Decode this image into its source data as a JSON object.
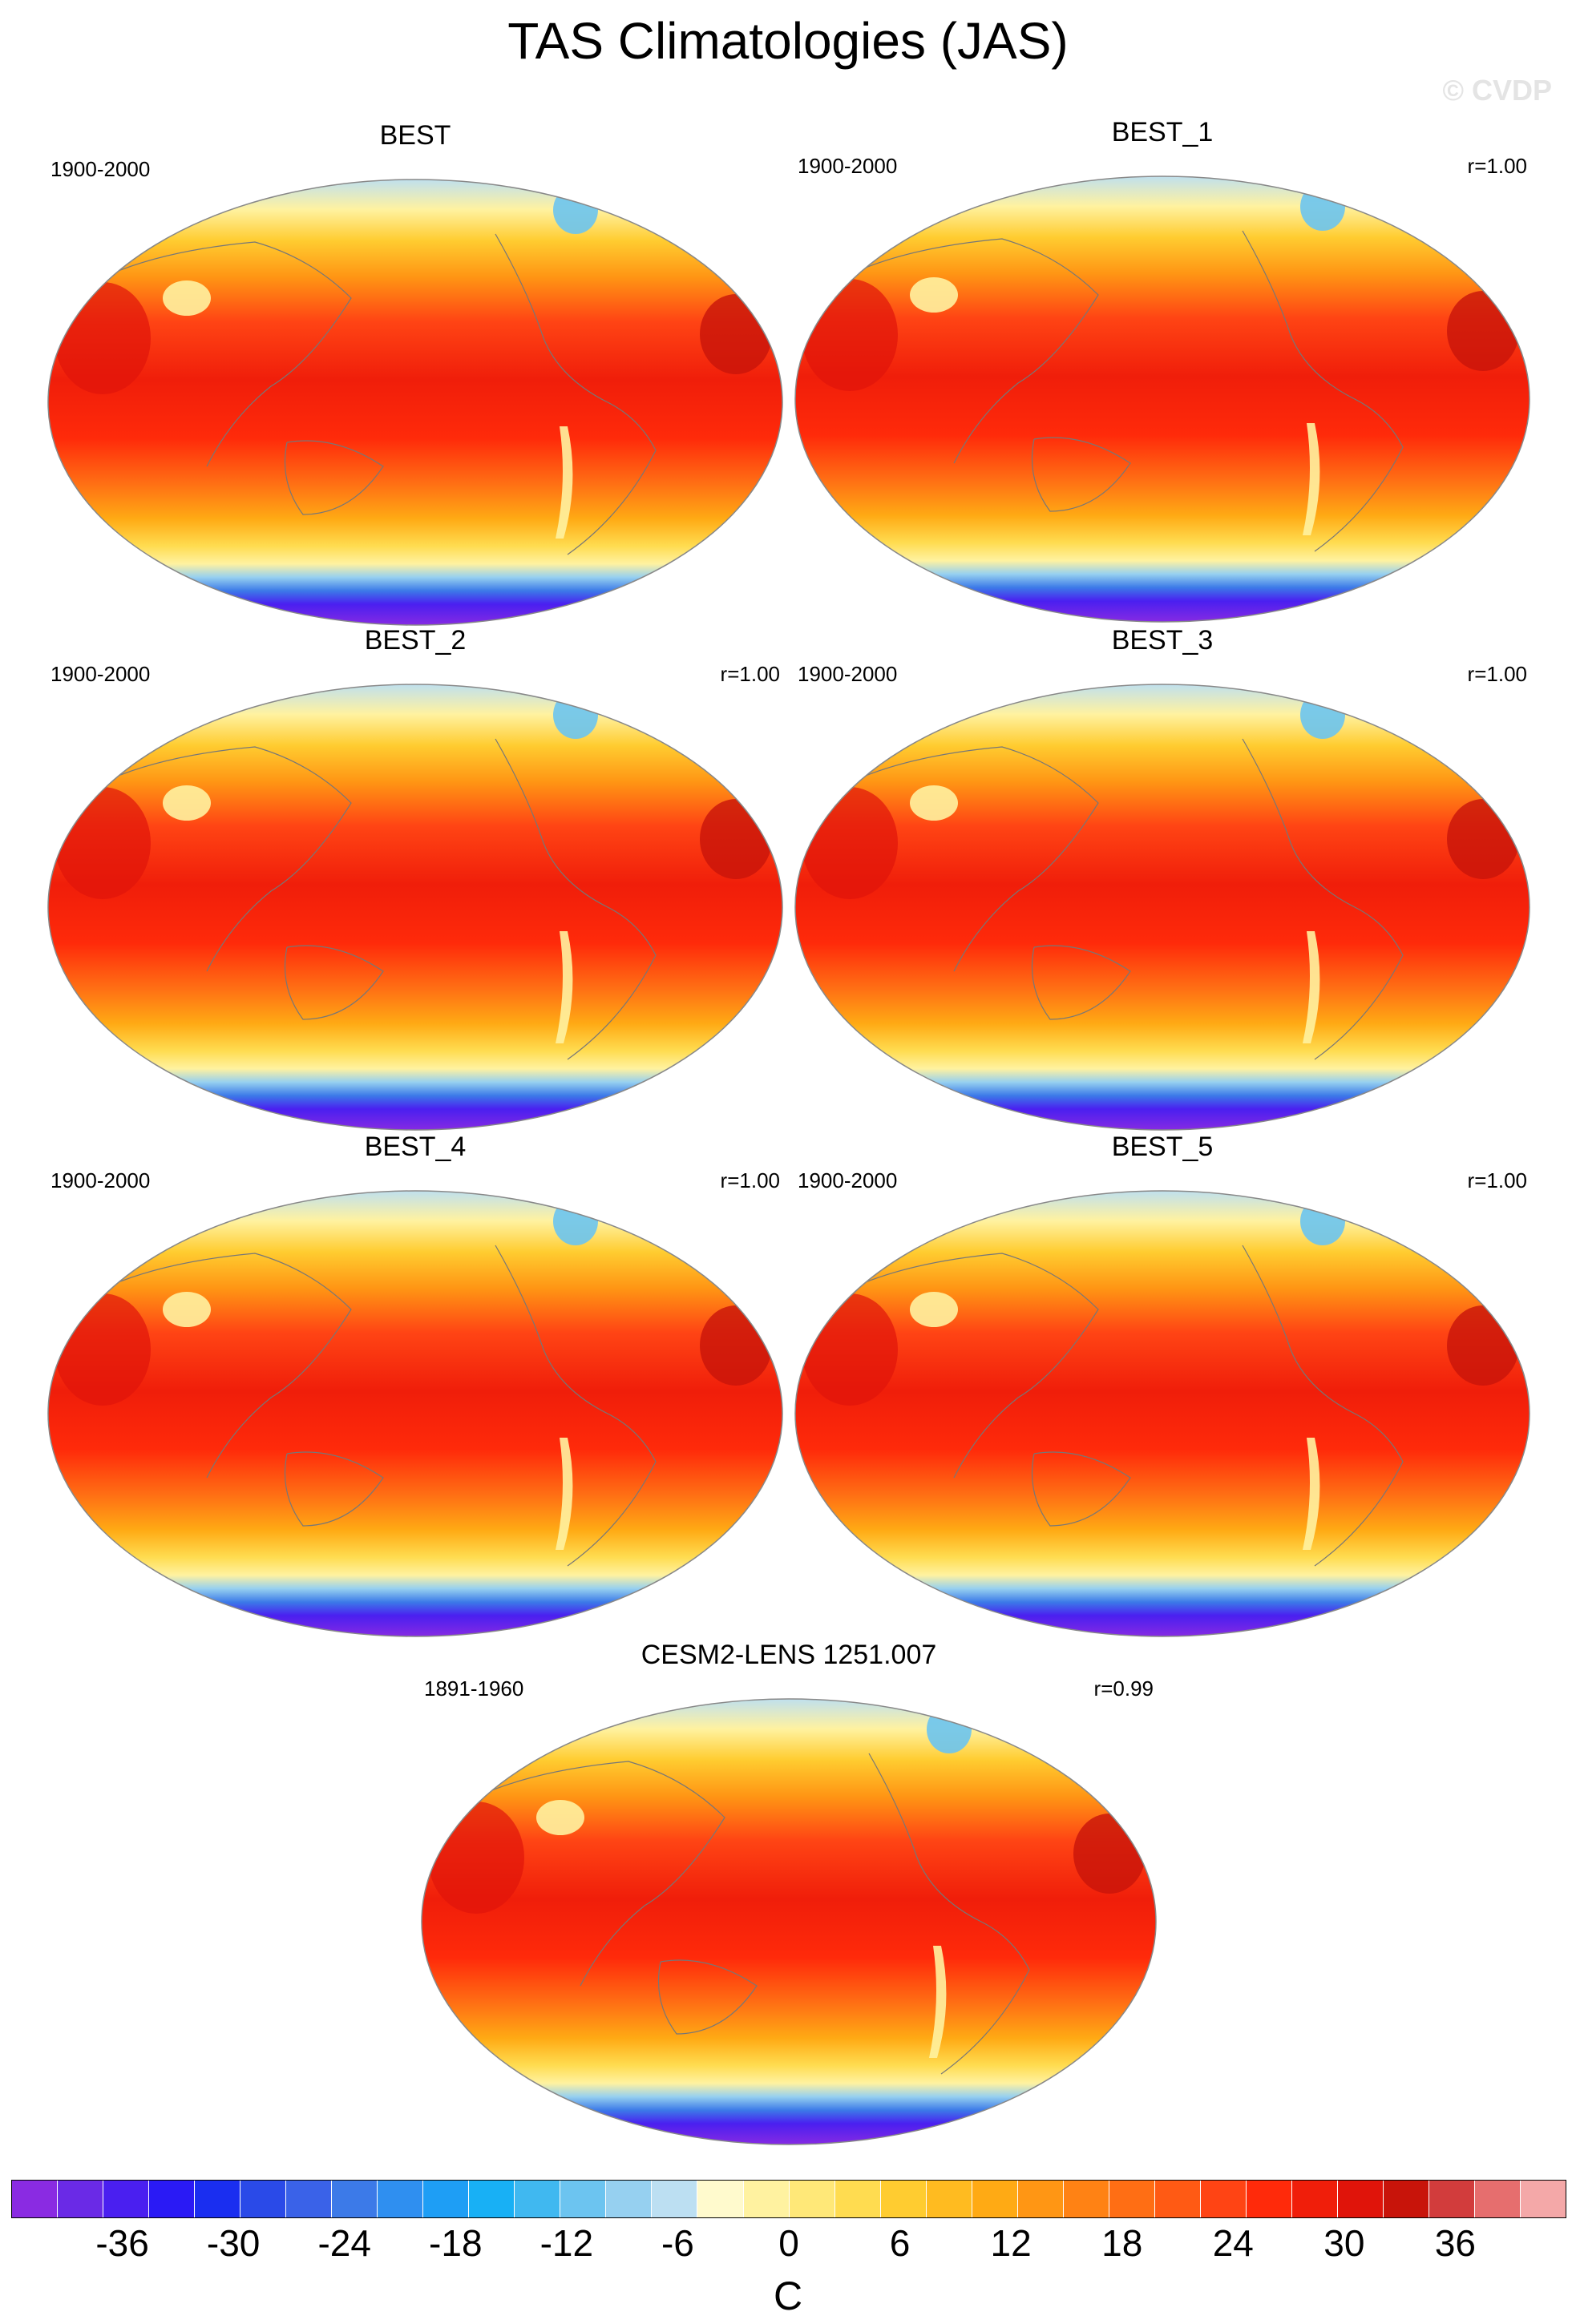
{
  "title": "TAS Climatologies (JAS)",
  "watermark": "© CVDP",
  "panels": [
    {
      "name": "BEST",
      "period": "1900-2000",
      "corr": ""
    },
    {
      "name": "BEST_1",
      "period": "1900-2000",
      "corr": "r=1.00"
    },
    {
      "name": "BEST_2",
      "period": "1900-2000",
      "corr": "r=1.00"
    },
    {
      "name": "BEST_3",
      "period": "1900-2000",
      "corr": "r=1.00"
    },
    {
      "name": "BEST_4",
      "period": "1900-2000",
      "corr": "r=1.00"
    },
    {
      "name": "BEST_5",
      "period": "1900-2000",
      "corr": "r=1.00"
    },
    {
      "name": "CESM2-LENS 1251.007",
      "period": "1891-1960",
      "corr": "r=0.99"
    }
  ],
  "colorbar": {
    "units": "C",
    "ticks": [
      "-36",
      "-30",
      "-24",
      "-18",
      "-12",
      "-6",
      "0",
      "6",
      "12",
      "18",
      "24",
      "30",
      "36"
    ],
    "colors": [
      "#8a2be2",
      "#6a2ae6",
      "#4a1ff0",
      "#2a1af5",
      "#1a2ef0",
      "#2a4ae8",
      "#3a62e8",
      "#3c7ae8",
      "#2f8ff0",
      "#1e9ef5",
      "#18b0f5",
      "#40b8f0",
      "#6cc4f0",
      "#96d0f0",
      "#bcdff2",
      "#fffacd",
      "#fff2a0",
      "#ffe878",
      "#ffdc50",
      "#ffcc30",
      "#ffbb20",
      "#ffaa14",
      "#ff9614",
      "#ff8214",
      "#ff6e14",
      "#ff5a14",
      "#ff4414",
      "#ff2a0a",
      "#f01e0a",
      "#e0140a",
      "#c8140a",
      "#d23c3c",
      "#e66e6e",
      "#f4a8a8"
    ]
  },
  "chart_data": [
    {
      "type": "heatmap",
      "subplot_title": "BEST",
      "period": "1900-2000",
      "projection": "global map",
      "variable": "TAS",
      "season": "JAS",
      "units": "C",
      "colorbar_range": [
        -42,
        42
      ],
      "colorbar_interval": 3
    }
  ]
}
